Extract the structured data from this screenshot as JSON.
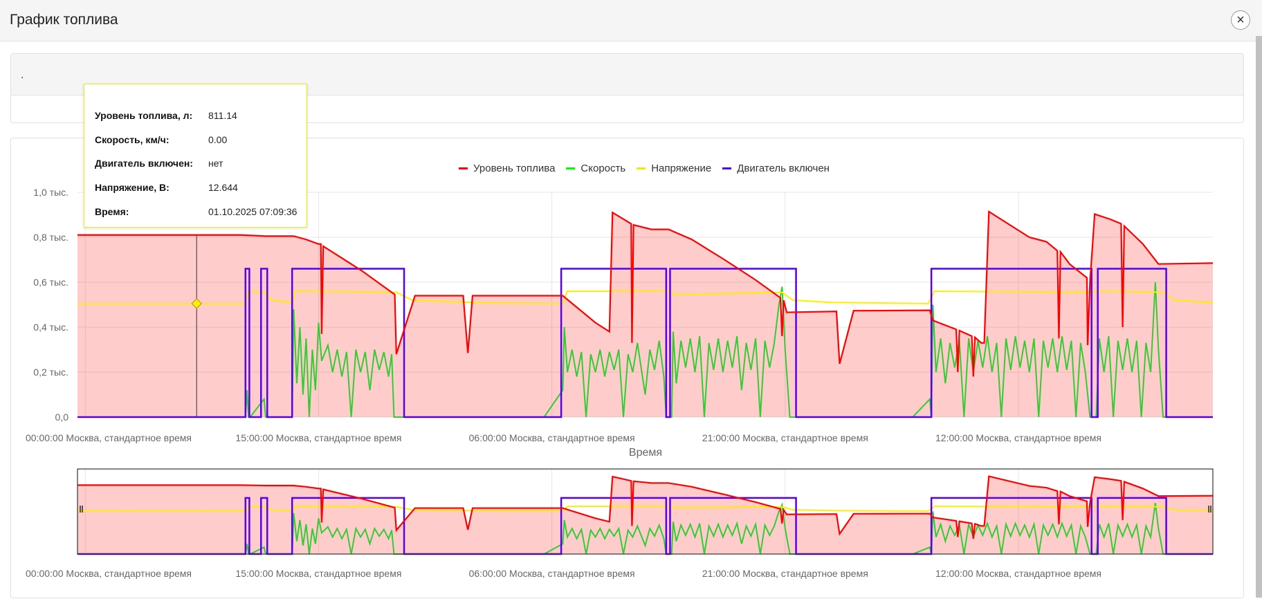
{
  "header": {
    "title": "График топлива",
    "close_icon": "close-icon"
  },
  "panel1": {
    "text": "."
  },
  "tooltip": {
    "rows": [
      {
        "label": "Уровень топлива, л:",
        "value": "811.14"
      },
      {
        "label": "Скорость, км/ч:",
        "value": "0.00"
      },
      {
        "label": "Двигатель включен:",
        "value": "нет"
      },
      {
        "label": "Напряжение, В:",
        "value": "12.644"
      },
      {
        "label": "Время:",
        "value": "01.10.2025 07:09:36"
      }
    ],
    "hover_hour": 7.16
  },
  "chart_data": {
    "type": "line",
    "xlabel": "Время",
    "ylabel": "",
    "xlim": [
      -0.5,
      72.5
    ],
    "ylim": [
      0,
      1000
    ],
    "x_unit": "hours from first tick",
    "grid": true,
    "legend_placement": "top-center",
    "yticks": [
      {
        "v": 0,
        "label": "0,0"
      },
      {
        "v": 200,
        "label": "0,2 тыс."
      },
      {
        "v": 400,
        "label": "0,4 тыс."
      },
      {
        "v": 600,
        "label": "0,6 тыс."
      },
      {
        "v": 800,
        "label": "0,8 тыс."
      },
      {
        "v": 1000,
        "label": "1,0 тыс."
      }
    ],
    "xticks": [
      {
        "h": 0,
        "label": "00:00:00 Москва, стандартное время"
      },
      {
        "h": 15,
        "label": "15:00:00 Москва, стандартное время"
      },
      {
        "h": 30,
        "label": "06:00:00 Москва, стандартное время"
      },
      {
        "h": 45,
        "label": "21:00:00 Москва, стандартное время"
      },
      {
        "h": 60,
        "label": "12:00:00 Москва, стандартное время"
      }
    ],
    "series": [
      {
        "name": "Уровень топлива",
        "color": "#ff0000",
        "fill": "rgba(255,0,0,0.2)",
        "points": [
          [
            -0.5,
            810
          ],
          [
            10,
            810
          ],
          [
            11.6,
            805
          ],
          [
            13.4,
            805
          ],
          [
            14.2,
            790
          ],
          [
            15,
            770
          ],
          [
            15.15,
            770
          ],
          [
            15.2,
            370
          ],
          [
            15.3,
            760
          ],
          [
            17.8,
            650
          ],
          [
            19.9,
            545
          ],
          [
            20.0,
            280
          ],
          [
            21.2,
            540
          ],
          [
            24.3,
            540
          ],
          [
            24.6,
            285
          ],
          [
            24.9,
            540
          ],
          [
            30.7,
            540
          ],
          [
            32.8,
            420
          ],
          [
            33.7,
            380
          ],
          [
            33.9,
            910
          ],
          [
            35.1,
            860
          ],
          [
            35.15,
            330
          ],
          [
            35.25,
            855
          ],
          [
            36.4,
            835
          ],
          [
            37.5,
            835
          ],
          [
            39,
            790
          ],
          [
            41.1,
            700
          ],
          [
            43.1,
            610
          ],
          [
            44.7,
            530
          ],
          [
            44.8,
            360
          ],
          [
            44.9,
            520
          ],
          [
            45.1,
            466
          ],
          [
            48.3,
            470
          ],
          [
            48.5,
            237
          ],
          [
            49.4,
            473
          ],
          [
            54.3,
            475
          ],
          [
            54.5,
            430
          ],
          [
            56,
            390
          ],
          [
            56.1,
            200
          ],
          [
            56.2,
            385
          ],
          [
            57,
            360
          ],
          [
            57.1,
            180
          ],
          [
            57.2,
            355
          ],
          [
            57.6,
            330
          ],
          [
            57.8,
            330
          ],
          [
            58.1,
            914
          ],
          [
            60.7,
            800
          ],
          [
            61.8,
            780
          ],
          [
            62.5,
            740
          ],
          [
            62.6,
            350
          ],
          [
            62.7,
            735
          ],
          [
            63.3,
            680
          ],
          [
            64.4,
            620
          ],
          [
            64.45,
            320
          ],
          [
            64.6,
            602
          ],
          [
            64.9,
            903
          ],
          [
            65.9,
            880
          ],
          [
            66.6,
            860
          ],
          [
            66.7,
            400
          ],
          [
            66.8,
            850
          ],
          [
            68,
            770
          ],
          [
            69,
            681
          ],
          [
            72.5,
            685
          ]
        ]
      },
      {
        "name": "Скорость",
        "color": "#33cc33",
        "points": [
          [
            -0.5,
            0
          ],
          [
            10.3,
            0
          ],
          [
            10.4,
            120
          ],
          [
            10.5,
            0
          ],
          [
            10.6,
            0
          ],
          [
            11.5,
            80
          ],
          [
            11.6,
            0
          ],
          [
            13.3,
            0
          ],
          [
            13.4,
            480
          ],
          [
            13.6,
            150
          ],
          [
            13.8,
            400
          ],
          [
            14,
            100
          ],
          [
            14.2,
            350
          ],
          [
            14.4,
            0
          ],
          [
            14.6,
            300
          ],
          [
            14.8,
            120
          ],
          [
            15,
            420
          ],
          [
            15.2,
            250
          ],
          [
            15.6,
            320
          ],
          [
            15.9,
            200
          ],
          [
            16.2,
            300
          ],
          [
            16.5,
            180
          ],
          [
            16.8,
            290
          ],
          [
            17.1,
            0
          ],
          [
            17.4,
            300
          ],
          [
            17.7,
            200
          ],
          [
            18,
            290
          ],
          [
            18.3,
            120
          ],
          [
            18.6,
            300
          ],
          [
            18.9,
            210
          ],
          [
            19.2,
            290
          ],
          [
            19.5,
            180
          ],
          [
            19.7,
            280
          ],
          [
            19.85,
            0
          ],
          [
            29.5,
            0
          ],
          [
            30.7,
            120
          ],
          [
            30.8,
            400
          ],
          [
            31,
            200
          ],
          [
            31.3,
            300
          ],
          [
            31.6,
            180
          ],
          [
            31.9,
            290
          ],
          [
            32.2,
            0
          ],
          [
            32.5,
            280
          ],
          [
            32.8,
            200
          ],
          [
            33.1,
            300
          ],
          [
            33.4,
            180
          ],
          [
            33.7,
            290
          ],
          [
            34,
            210
          ],
          [
            34.3,
            300
          ],
          [
            34.6,
            0
          ],
          [
            34.9,
            280
          ],
          [
            35.2,
            200
          ],
          [
            35.5,
            330
          ],
          [
            36,
            100
          ],
          [
            36.3,
            300
          ],
          [
            36.6,
            210
          ],
          [
            36.9,
            340
          ],
          [
            37.2,
            180
          ],
          [
            37.35,
            0
          ],
          [
            37.7,
            0
          ],
          [
            37.8,
            380
          ],
          [
            38,
            150
          ],
          [
            38.3,
            340
          ],
          [
            38.6,
            220
          ],
          [
            38.9,
            350
          ],
          [
            39.2,
            200
          ],
          [
            39.5,
            360
          ],
          [
            39.8,
            0
          ],
          [
            40.1,
            330
          ],
          [
            40.4,
            210
          ],
          [
            40.7,
            350
          ],
          [
            41,
            200
          ],
          [
            41.3,
            340
          ],
          [
            41.6,
            220
          ],
          [
            41.9,
            360
          ],
          [
            42.2,
            120
          ],
          [
            42.5,
            330
          ],
          [
            42.8,
            210
          ],
          [
            43.1,
            350
          ],
          [
            43.4,
            0
          ],
          [
            43.7,
            340
          ],
          [
            44,
            220
          ],
          [
            44.3,
            330
          ],
          [
            44.6,
            500
          ],
          [
            44.8,
            580
          ],
          [
            45,
            300
          ],
          [
            45.3,
            0
          ],
          [
            53.2,
            0
          ],
          [
            54.3,
            80
          ],
          [
            54.4,
            0
          ],
          [
            54.5,
            500
          ],
          [
            54.7,
            200
          ],
          [
            55,
            350
          ],
          [
            55.3,
            150
          ],
          [
            55.6,
            330
          ],
          [
            55.9,
            220
          ],
          [
            56.2,
            340
          ],
          [
            56.5,
            0
          ],
          [
            56.8,
            350
          ],
          [
            57.1,
            200
          ],
          [
            57.4,
            340
          ],
          [
            57.7,
            220
          ],
          [
            58,
            360
          ],
          [
            58.3,
            200
          ],
          [
            58.6,
            330
          ],
          [
            58.9,
            0
          ],
          [
            59.2,
            350
          ],
          [
            59.5,
            210
          ],
          [
            59.8,
            360
          ],
          [
            60.1,
            220
          ],
          [
            60.4,
            340
          ],
          [
            60.7,
            200
          ],
          [
            61,
            350
          ],
          [
            61.3,
            0
          ],
          [
            61.6,
            340
          ],
          [
            61.9,
            220
          ],
          [
            62.2,
            350
          ],
          [
            62.5,
            200
          ],
          [
            62.8,
            360
          ],
          [
            63.1,
            210
          ],
          [
            63.4,
            340
          ],
          [
            63.7,
            0
          ],
          [
            64,
            330
          ],
          [
            64.3,
            200
          ],
          [
            64.6,
            0
          ],
          [
            65,
            0
          ],
          [
            65.2,
            350
          ],
          [
            65.5,
            200
          ],
          [
            65.8,
            360
          ],
          [
            66.1,
            0
          ],
          [
            66.4,
            340
          ],
          [
            66.7,
            210
          ],
          [
            67,
            350
          ],
          [
            67.3,
            200
          ],
          [
            67.6,
            340
          ],
          [
            67.9,
            0
          ],
          [
            68.2,
            330
          ],
          [
            68.5,
            200
          ],
          [
            68.8,
            600
          ],
          [
            69,
            300
          ],
          [
            69.3,
            0
          ],
          [
            72.5,
            0
          ]
        ]
      },
      {
        "name": "Напряжение",
        "color": "#ffee00",
        "points": [
          [
            -0.5,
            505
          ],
          [
            10.3,
            505
          ],
          [
            10.5,
            560
          ],
          [
            11.5,
            555
          ],
          [
            12,
            520
          ],
          [
            13.3,
            510
          ],
          [
            13.5,
            560
          ],
          [
            20,
            555
          ],
          [
            21,
            520
          ],
          [
            25,
            510
          ],
          [
            30.7,
            505
          ],
          [
            31,
            560
          ],
          [
            37.5,
            560
          ],
          [
            38,
            545
          ],
          [
            44.8,
            555
          ],
          [
            45.5,
            520
          ],
          [
            48,
            510
          ],
          [
            54.2,
            505
          ],
          [
            54.6,
            560
          ],
          [
            64.5,
            555
          ],
          [
            65,
            560
          ],
          [
            69.3,
            555
          ],
          [
            70,
            520
          ],
          [
            72.5,
            510
          ]
        ]
      },
      {
        "name": "Двигатель включен",
        "color": "#5500ee",
        "on_value": 660,
        "on_intervals": [
          [
            10.3,
            10.55
          ],
          [
            11.3,
            11.7
          ],
          [
            13.3,
            20.5
          ],
          [
            30.6,
            37.35
          ],
          [
            37.6,
            45.7
          ],
          [
            54.4,
            64.7
          ],
          [
            65.1,
            69.5
          ]
        ]
      }
    ]
  }
}
